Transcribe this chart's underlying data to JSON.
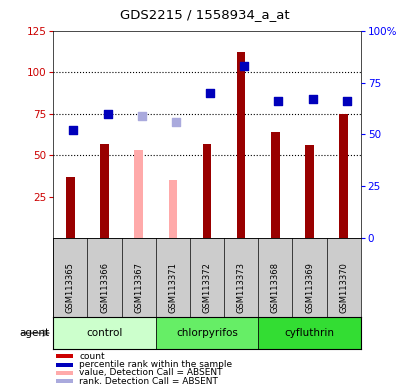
{
  "title": "GDS2215 / 1558934_a_at",
  "samples": [
    "GSM113365",
    "GSM113366",
    "GSM113367",
    "GSM113371",
    "GSM113372",
    "GSM113373",
    "GSM113368",
    "GSM113369",
    "GSM113370"
  ],
  "groups": [
    {
      "name": "control",
      "indices": [
        0,
        1,
        2
      ],
      "color": "#ccffcc"
    },
    {
      "name": "chlorpyrifos",
      "indices": [
        3,
        4,
        5
      ],
      "color": "#66ee66"
    },
    {
      "name": "cyfluthrin",
      "indices": [
        6,
        7,
        8
      ],
      "color": "#33dd33"
    }
  ],
  "absent": [
    false,
    false,
    true,
    true,
    false,
    false,
    false,
    false,
    false
  ],
  "count_values": [
    37,
    57,
    53,
    35,
    57,
    112,
    64,
    56,
    75
  ],
  "rank_values": [
    52,
    60,
    59,
    56,
    70,
    83,
    66,
    67,
    66
  ],
  "ylim_left": [
    0,
    125
  ],
  "ylim_right": [
    0,
    100
  ],
  "yticks_left": [
    25,
    50,
    75,
    100,
    125
  ],
  "yticks_right": [
    0,
    25,
    50,
    75,
    100
  ],
  "yticklabels_right": [
    "0",
    "25",
    "50",
    "75",
    "100%"
  ],
  "grid_lines": [
    50,
    75,
    100
  ],
  "bar_width": 0.25,
  "dot_size": 28,
  "color_count_present": "#990000",
  "color_count_absent": "#ffaaaa",
  "color_rank_present": "#0000bb",
  "color_rank_absent": "#aaaadd",
  "legend_items": [
    {
      "color": "#cc0000",
      "label": "count"
    },
    {
      "color": "#0000bb",
      "label": "percentile rank within the sample"
    },
    {
      "color": "#ffaaaa",
      "label": "value, Detection Call = ABSENT"
    },
    {
      "color": "#aaaadd",
      "label": "rank, Detection Call = ABSENT"
    }
  ],
  "sample_box_color": "#cccccc",
  "plot_bg": "#ffffff"
}
